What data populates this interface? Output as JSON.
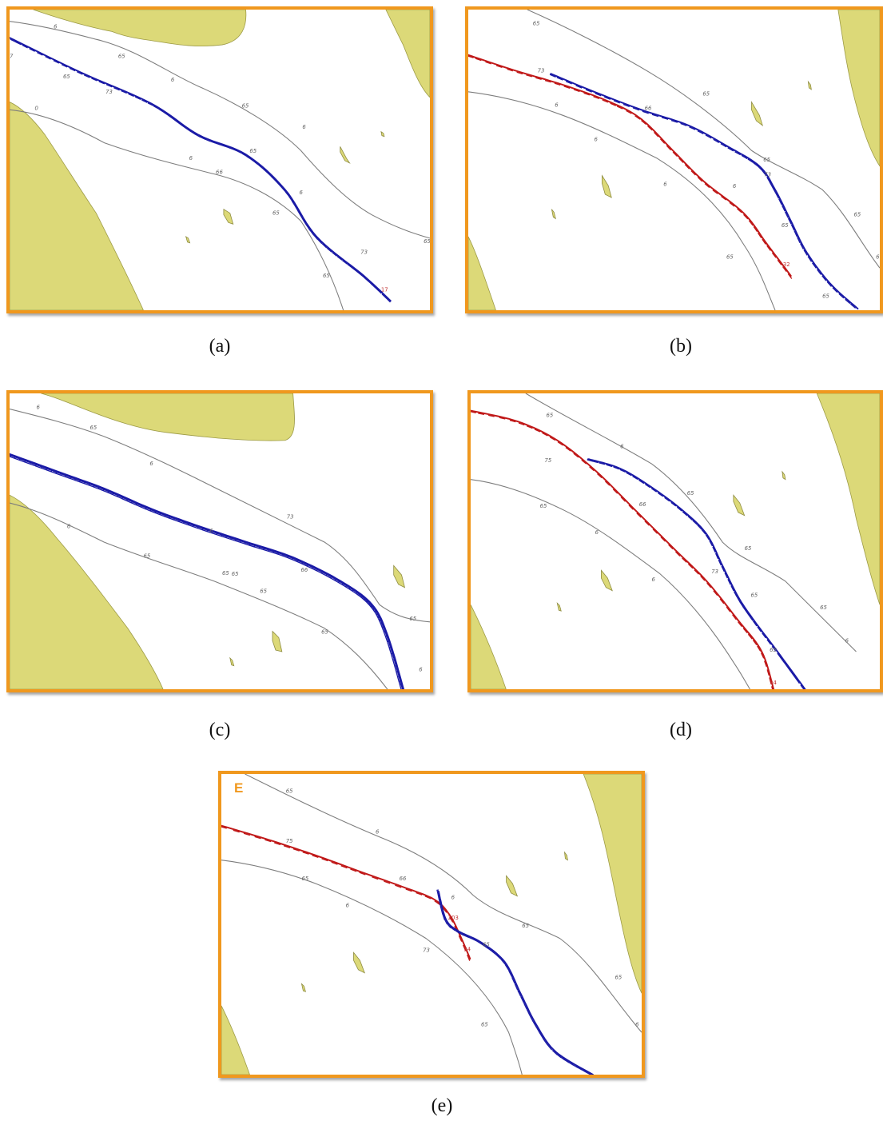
{
  "panels": [
    {
      "id": "a",
      "caption": "(a)",
      "corner_letter": "",
      "track_colors": [
        "#1a1aa6"
      ],
      "depth_labels": [
        "6",
        "65",
        "73",
        "6",
        "65",
        "6",
        "65",
        "6",
        "66",
        "6",
        "65",
        "73",
        "65",
        "65",
        "65",
        "0",
        "7"
      ],
      "track_labels": [
        "17"
      ]
    },
    {
      "id": "b",
      "caption": "(b)",
      "corner_letter": "",
      "track_colors": [
        "#c01818",
        "#1a1aa6"
      ],
      "depth_labels": [
        "65",
        "73",
        "6",
        "66",
        "6",
        "65",
        "6",
        "6",
        "65",
        "73",
        "65",
        "65",
        "65",
        "65",
        "6"
      ],
      "track_labels": [
        "32"
      ]
    },
    {
      "id": "c",
      "caption": "(c)",
      "corner_letter": "",
      "track_colors": [
        "#1a1aa6"
      ],
      "depth_labels": [
        "6",
        "65",
        "6",
        "73",
        "6",
        "65",
        "65",
        "66",
        "6",
        "65",
        "65",
        "65",
        "65",
        "6"
      ],
      "track_labels": []
    },
    {
      "id": "d",
      "caption": "(d)",
      "corner_letter": "",
      "track_colors": [
        "#c01818",
        "#1a1aa6"
      ],
      "depth_labels": [
        "65",
        "6",
        "75",
        "65",
        "66",
        "6",
        "65",
        "6",
        "73",
        "65",
        "65",
        "65",
        "65",
        "6"
      ],
      "track_labels": [
        "34"
      ]
    },
    {
      "id": "e",
      "caption": "(e)",
      "corner_letter": "E",
      "track_colors": [
        "#c01818",
        "#1a1aa6"
      ],
      "depth_labels": [
        "65",
        "6",
        "75",
        "65",
        "66",
        "6",
        "6",
        "65",
        "73",
        "65",
        "65",
        "65",
        "6"
      ],
      "track_labels": [
        "203",
        "34"
      ]
    }
  ]
}
